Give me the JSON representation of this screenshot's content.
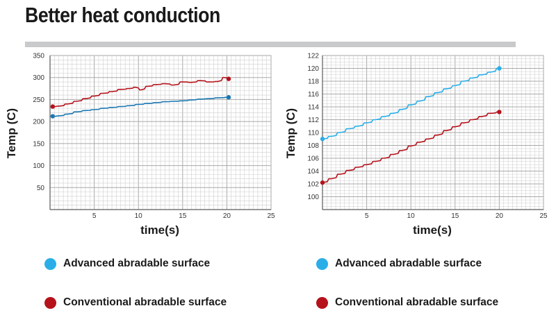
{
  "page": {
    "title": "Better heat conduction"
  },
  "colors": {
    "advanced_line_left": "#1a78b4",
    "advanced_line_right": "#2aaee8",
    "advanced_dot": "#2aaee8",
    "conventional": "#b5121b",
    "grid_minor": "#cfcfcf",
    "grid_major": "#a9a9a9",
    "frame": "#5a5a5a"
  },
  "chart_data": [
    {
      "type": "line",
      "title": "",
      "xlabel": "time(s)",
      "ylabel": "Temp (C)",
      "xlim": [
        0,
        25
      ],
      "ylim": [
        0,
        350
      ],
      "x_ticks": [
        5,
        10,
        15,
        20,
        25
      ],
      "y_ticks": [
        50,
        100,
        150,
        200,
        250,
        300,
        350
      ],
      "grid": true,
      "series": [
        {
          "name": "Advanced abradable surface",
          "x": [
            0.3,
            1,
            2,
            3,
            4,
            5,
            6,
            7,
            8,
            9,
            10,
            11,
            12,
            13,
            14,
            15,
            16,
            17,
            18,
            19,
            20.2
          ],
          "y": [
            212,
            213,
            217,
            222,
            225,
            227,
            230,
            232,
            234,
            236,
            239,
            241,
            243,
            245,
            246,
            247,
            249,
            251,
            252,
            254,
            255
          ]
        },
        {
          "name": "Conventional abradable surface",
          "x": [
            0.3,
            1,
            2,
            3,
            4,
            5,
            6,
            7,
            8,
            9,
            9.6,
            10.3,
            11,
            12,
            13,
            14,
            15,
            16,
            17,
            18,
            19,
            19.7,
            20.2
          ],
          "y": [
            234,
            235,
            240,
            246,
            252,
            258,
            264,
            268,
            273,
            275,
            278,
            272,
            280,
            284,
            286,
            283,
            290,
            289,
            293,
            290,
            291,
            300,
            297
          ]
        }
      ]
    },
    {
      "type": "line",
      "title": "",
      "xlabel": "time(s)",
      "ylabel": "Temp (C)",
      "xlim": [
        0,
        25
      ],
      "ylim": [
        98,
        122
      ],
      "x_ticks": [
        5,
        10,
        15,
        20,
        25
      ],
      "y_ticks": [
        100,
        102,
        104,
        106,
        108,
        110,
        112,
        114,
        116,
        118,
        120,
        122
      ],
      "grid": true,
      "series": [
        {
          "name": "Advanced abradable surface",
          "x": [
            0,
            1,
            2,
            3,
            4,
            5,
            6,
            7,
            8,
            9,
            10,
            11,
            12,
            13,
            14,
            15,
            16,
            17,
            18,
            19,
            20
          ],
          "y": [
            109.0,
            109.4,
            110.0,
            110.6,
            111.0,
            111.5,
            112.0,
            112.5,
            113.0,
            113.6,
            114.3,
            114.9,
            115.6,
            116.2,
            116.8,
            117.3,
            118.0,
            118.5,
            119.0,
            119.4,
            120.0
          ]
        },
        {
          "name": "Conventional abradable surface",
          "x": [
            0,
            1,
            2,
            3,
            4,
            5,
            6,
            7,
            8,
            9,
            10,
            11,
            12,
            13,
            14,
            15,
            16,
            17,
            18,
            19,
            20
          ],
          "y": [
            102.2,
            102.8,
            103.5,
            104.1,
            104.6,
            105.0,
            105.5,
            106.0,
            106.6,
            107.2,
            107.9,
            108.5,
            109.0,
            109.6,
            110.3,
            110.9,
            111.5,
            112.0,
            112.5,
            113.0,
            113.2
          ]
        }
      ]
    }
  ],
  "legends": [
    {
      "items": [
        {
          "label": "Advanced abradable surface",
          "color": "#2aaee8"
        },
        {
          "label": "Conventional abradable surface",
          "color": "#b5121b"
        }
      ]
    },
    {
      "items": [
        {
          "label": "Advanced abradable surface",
          "color": "#2aaee8"
        },
        {
          "label": "Conventional abradable surface",
          "color": "#b5121b"
        }
      ]
    }
  ]
}
